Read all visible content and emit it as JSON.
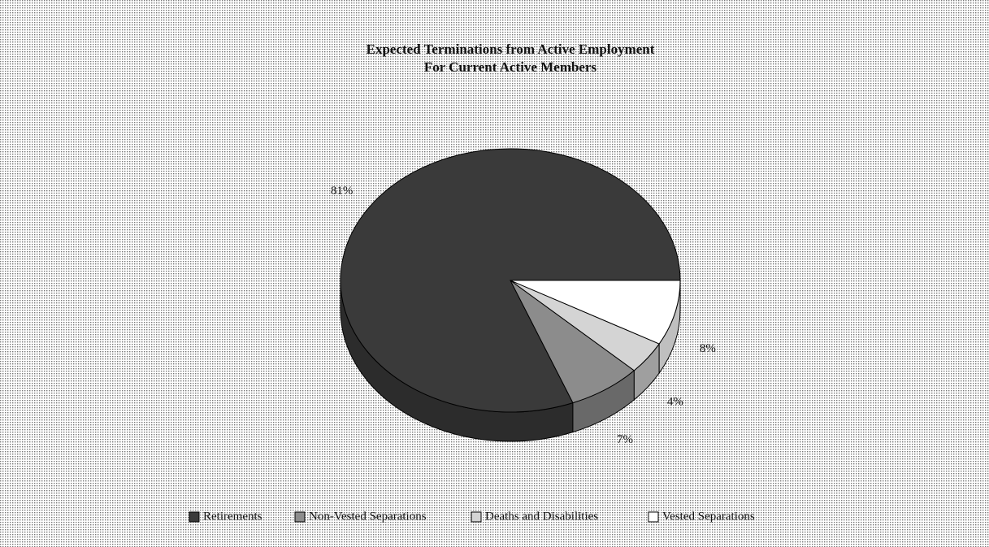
{
  "chart_data": {
    "type": "pie",
    "title": "Expected Terminations from Active Employment",
    "subtitle": "For Current Active Members",
    "categories": [
      "Retirements",
      "Non-Vested Separations",
      "Deaths and Disabilities",
      "Vested Separations"
    ],
    "values": [
      81,
      7,
      4,
      8
    ],
    "value_labels": [
      "81%",
      "7%",
      "4%",
      "8%"
    ],
    "colors": [
      "#3a3a3a",
      "#8c8c8c",
      "#d4d4d4",
      "#ffffff"
    ],
    "legend": "bottom"
  }
}
